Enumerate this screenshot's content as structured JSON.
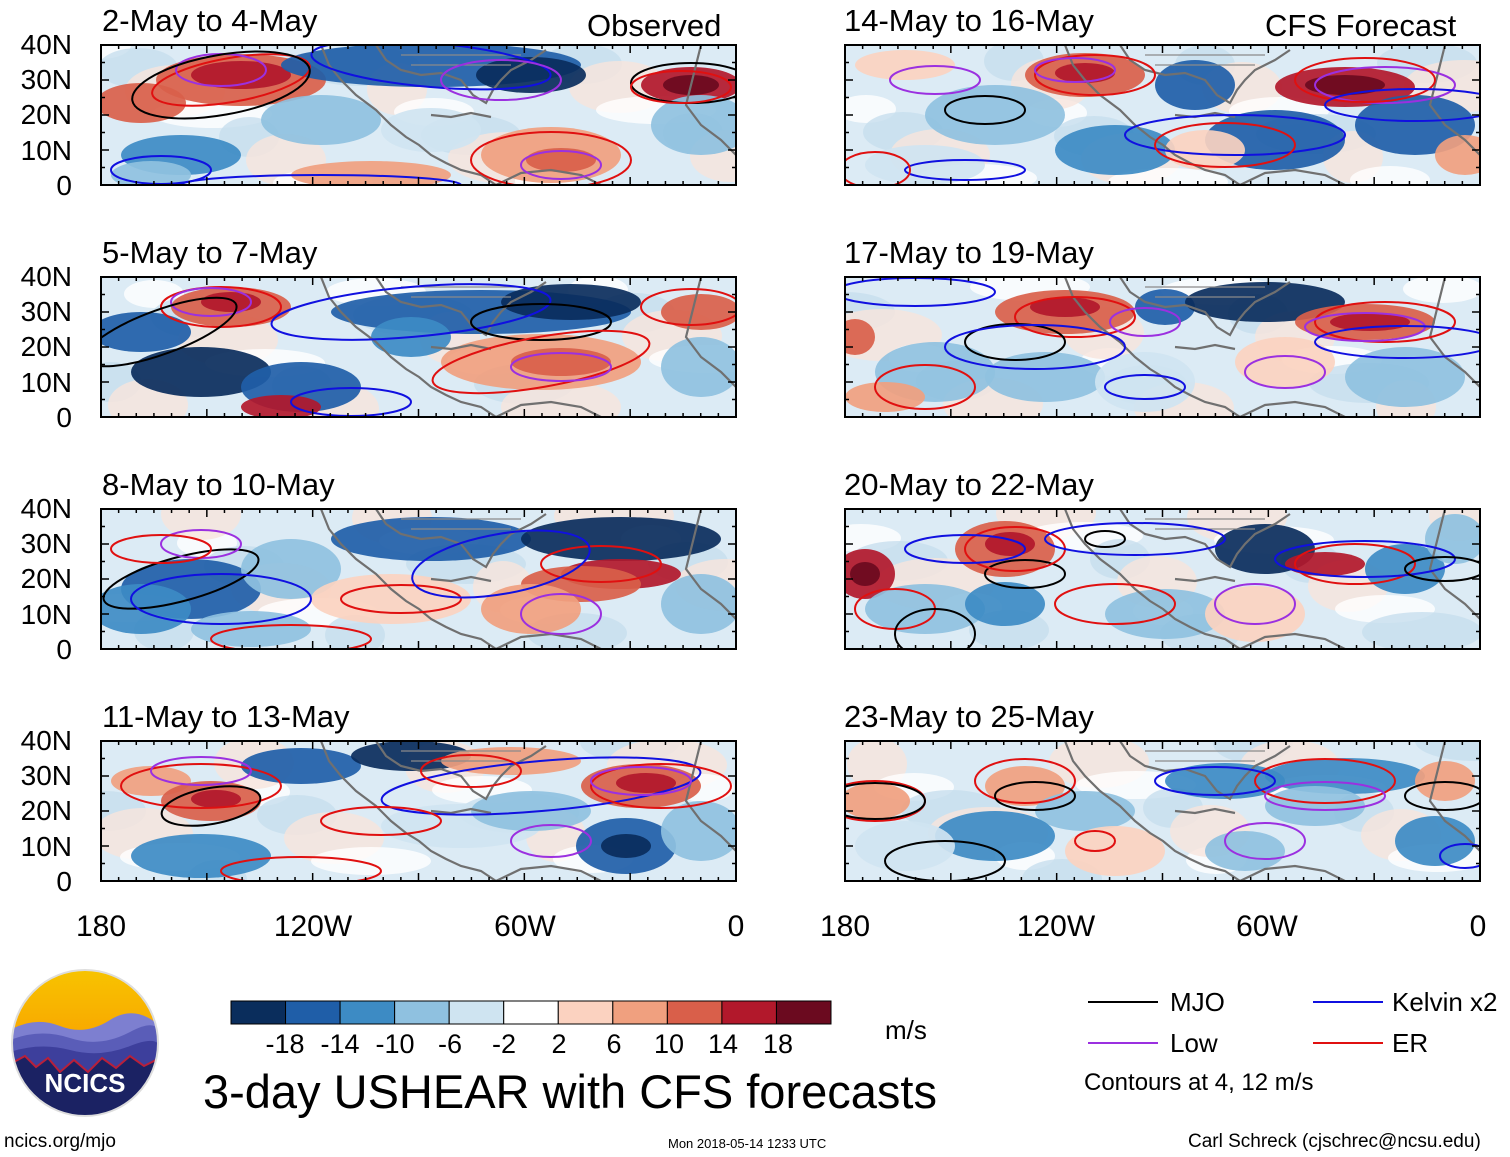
{
  "header": {
    "observed_label": "Observed",
    "forecast_label": "CFS Forecast"
  },
  "panels_observed": [
    {
      "title": "2-May to 4-May"
    },
    {
      "title": "5-May to 7-May"
    },
    {
      "title": "8-May to 10-May"
    },
    {
      "title": "11-May to 13-May"
    }
  ],
  "panels_forecast": [
    {
      "title": "14-May to 16-May"
    },
    {
      "title": "17-May to 19-May"
    },
    {
      "title": "20-May to 22-May"
    },
    {
      "title": "23-May to 25-May"
    }
  ],
  "axes": {
    "lat_labels": [
      "40N",
      "30N",
      "20N",
      "10N",
      "0"
    ],
    "lon_labels": [
      "180",
      "120W",
      "60W",
      "0"
    ]
  },
  "colorbar": {
    "ticks": [
      "-18",
      "-14",
      "-10",
      "-6",
      "-2",
      "2",
      "6",
      "10",
      "14",
      "18"
    ],
    "colors": [
      "#0a2d5c",
      "#1f5ea8",
      "#3d8bc4",
      "#8fc1e0",
      "#cfe4f1",
      "#ffffff",
      "#fbd2c0",
      "#f0a07f",
      "#d95f4a",
      "#b2182b",
      "#6b0a1f"
    ],
    "units": "m/s"
  },
  "legend": {
    "items": [
      {
        "label": "MJO",
        "color": "#000000"
      },
      {
        "label": "Kelvin x2",
        "color": "#1010e0"
      },
      {
        "label": "Low",
        "color": "#9b30e0"
      },
      {
        "label": "ER",
        "color": "#e01010"
      }
    ],
    "note": "Contours at 4, 12 m/s"
  },
  "logo": {
    "text": "NCICS"
  },
  "main_title": "3-day USHEAR with CFS forecasts",
  "footer": {
    "site": "ncics.org/mjo",
    "timestamp": "Mon 2018-05-14 1233 UTC",
    "author": "Carl Schreck (cjschrec@ncsu.edu)"
  }
}
